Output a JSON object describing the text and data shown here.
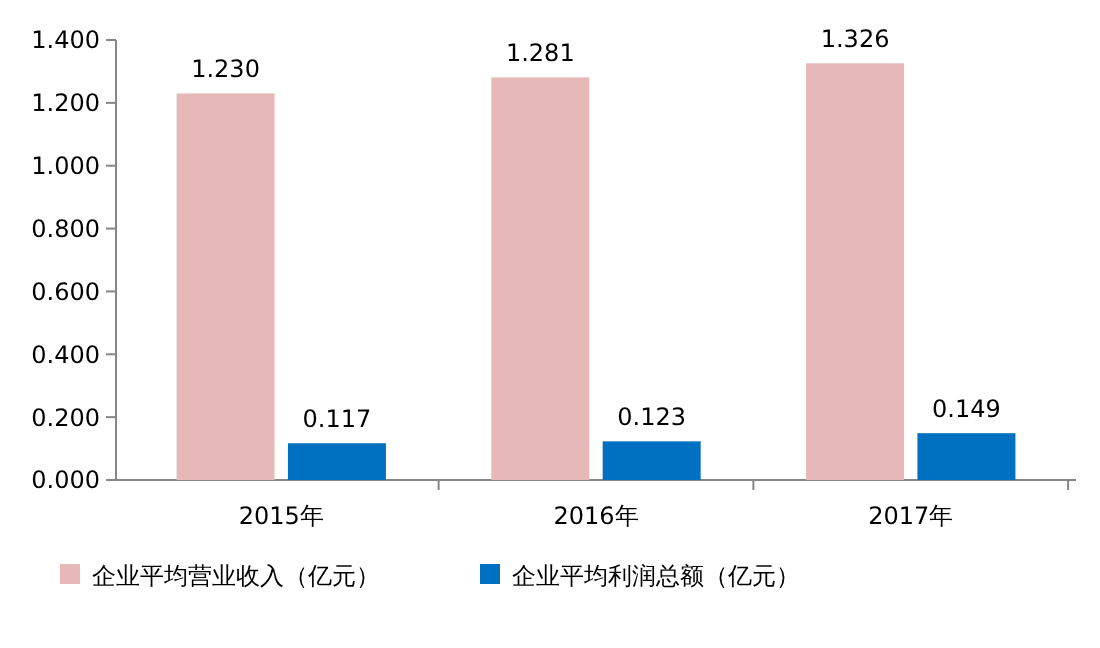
{
  "chart_data": {
    "type": "bar",
    "categories": [
      "2015年",
      "2016年",
      "2017年"
    ],
    "series": [
      {
        "name": "企业平均营业收入（亿元）",
        "color": "#e6b9b8",
        "values": [
          1.23,
          1.281,
          1.326
        ],
        "value_labels": [
          "1.230",
          "1.281",
          "1.326"
        ]
      },
      {
        "name": "企业平均利润总额（亿元）",
        "color": "#0070c0",
        "values": [
          0.117,
          0.123,
          0.149
        ],
        "value_labels": [
          "0.117",
          "0.123",
          "0.149"
        ]
      }
    ],
    "ylim": [
      0,
      1.4
    ],
    "yticks": [
      {
        "value": 0,
        "label": "0.000"
      },
      {
        "value": 0.2,
        "label": "0.200"
      },
      {
        "value": 0.4,
        "label": "0.400"
      },
      {
        "value": 0.6,
        "label": "0.600"
      },
      {
        "value": 0.8,
        "label": "0.800"
      },
      {
        "value": 1,
        "label": "1.000"
      },
      {
        "value": 1.2,
        "label": "1.200"
      },
      {
        "value": 1.4,
        "label": "1.400"
      }
    ],
    "grid": false,
    "legend": "bottom"
  }
}
